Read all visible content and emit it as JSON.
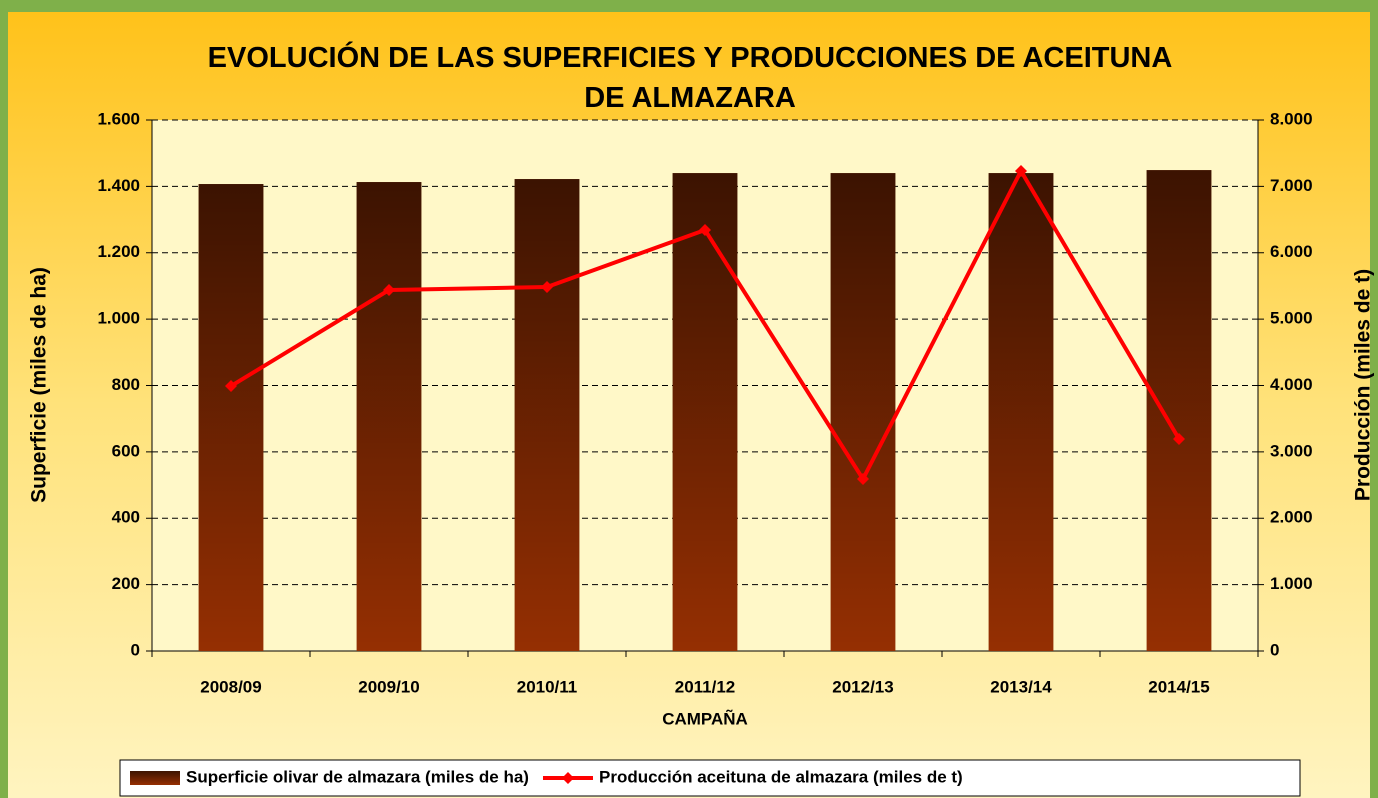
{
  "chart_data": {
    "type": "bar-line",
    "title": "EVOLUCIÓN DE LAS SUPERFICIES Y PRODUCCIONES DE ACEITUNA DE ALMAZARA",
    "xlabel": "CAMPAÑA",
    "ylabel": "Superficie (miles de ha)",
    "y2label": "Producción (miles de t)",
    "categories": [
      "2008/09",
      "2009/10",
      "2010/11",
      "2011/12",
      "2012/13",
      "2013/14",
      "2014/15"
    ],
    "series": [
      {
        "name": "Superficie olivar de almazara (miles de ha)",
        "type": "bar",
        "color": "#952f02",
        "values": [
          1407,
          1413,
          1422,
          1440,
          1440,
          1440,
          1449
        ]
      },
      {
        "name": "Producción aceituna de almazara (miles de t)",
        "type": "line",
        "axis": "y2",
        "color": "#ff0000",
        "values": [
          3992,
          5439,
          5484,
          6343,
          2591,
          7232,
          3194
        ]
      }
    ],
    "ylim": [
      0,
      1600
    ],
    "yticks": [
      0,
      200,
      400,
      600,
      800,
      {
        "value": 1000,
        "label": "1.000"
      },
      {
        "value": 1200,
        "label": "1.200"
      },
      {
        "value": 1400,
        "label": "1.400"
      },
      {
        "value": 1600,
        "label": "1.600"
      }
    ],
    "y2lim": [
      0,
      8000
    ],
    "y2ticks": [
      0,
      {
        "value": 1000,
        "label": "1.000"
      },
      {
        "value": 2000,
        "label": "2.000"
      },
      {
        "value": 3000,
        "label": "3.000"
      },
      {
        "value": 4000,
        "label": "4.000"
      },
      {
        "value": 5000,
        "label": "5.000"
      },
      {
        "value": 6000,
        "label": "6.000"
      },
      {
        "value": 7000,
        "label": "7.000"
      },
      {
        "value": 8000,
        "label": "8.000"
      }
    ],
    "grid": true,
    "legend": "bottom"
  }
}
